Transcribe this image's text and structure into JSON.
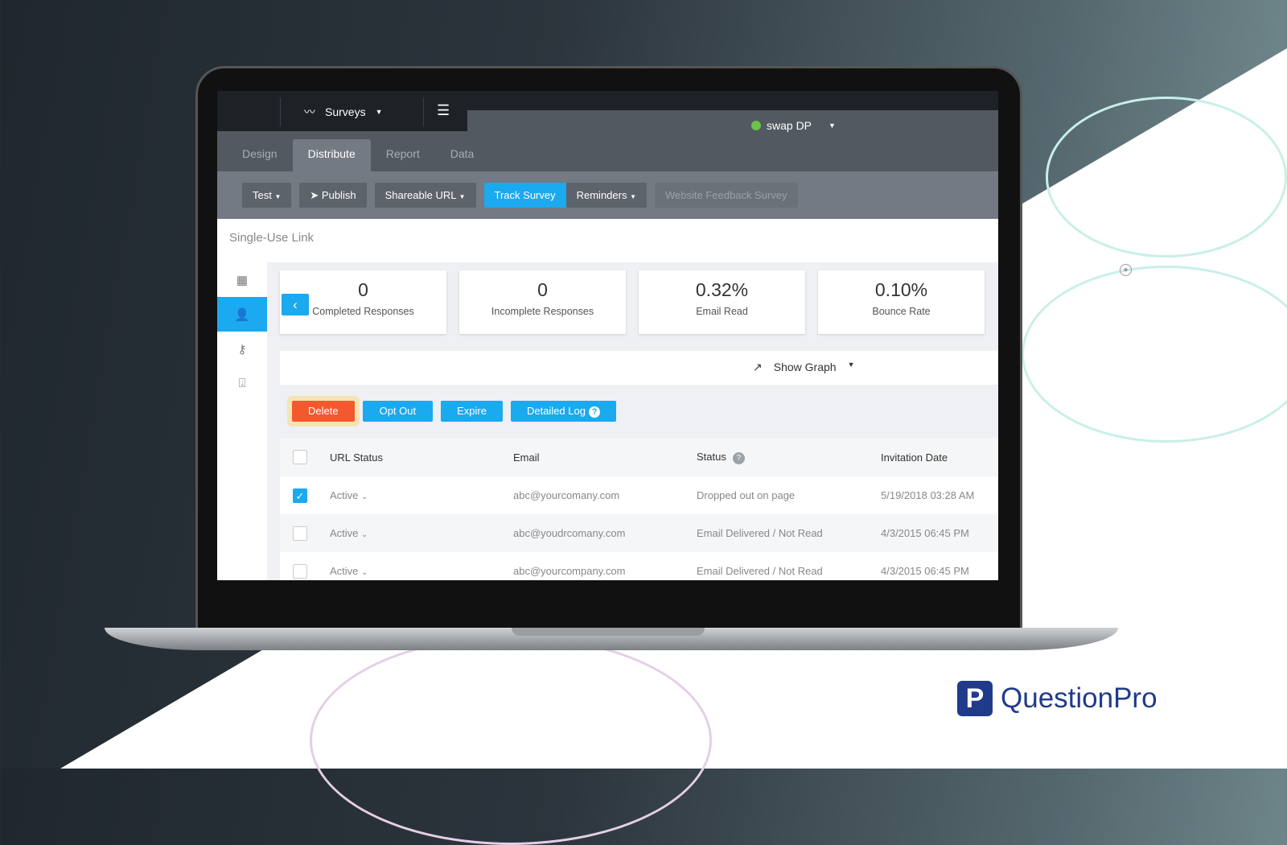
{
  "brand": {
    "name": "QuestionPro",
    "accent": "#1ba9ef",
    "danger": "#f4582f"
  },
  "topbar": {
    "module": "Surveys",
    "user": "swap DP"
  },
  "tabs": [
    "Design",
    "Distribute",
    "Report",
    "Data"
  ],
  "active_tab": "Distribute",
  "toolbar": {
    "test": "Test",
    "publish": "Publish",
    "shareable": "Shareable URL",
    "track": "Track Survey",
    "reminders": "Reminders",
    "survey_name": "Website Feedback Survey"
  },
  "section_title": "Single-Use Link",
  "stats": [
    {
      "value": "0",
      "label": "Completed Responses"
    },
    {
      "value": "0",
      "label": "Incomplete Responses"
    },
    {
      "value": "0.32%",
      "label": "Email Read"
    },
    {
      "value": "0.10%",
      "label": "Bounce Rate"
    }
  ],
  "graph": {
    "label": "Show Graph"
  },
  "actions": {
    "delete": "Delete",
    "optout": "Opt Out",
    "expire": "Expire",
    "log": "Detailed Log"
  },
  "table": {
    "headers": [
      "URL Status",
      "Email",
      "Status",
      "Invitation Date"
    ],
    "rows": [
      {
        "checked": true,
        "url_status": "Active",
        "email": "abc@yourcomany.com",
        "status": "Dropped out on page",
        "date": "5/19/2018 03:28 AM"
      },
      {
        "checked": false,
        "url_status": "Active",
        "email": "abc@youdrcomany.com",
        "status": "Email Delivered / Not Read",
        "date": "4/3/2015 06:45 PM"
      },
      {
        "checked": false,
        "url_status": "Active",
        "email": "abc@yourcompany.com",
        "status": "Email Delivered / Not Read",
        "date": "4/3/2015 06:45 PM"
      }
    ]
  }
}
